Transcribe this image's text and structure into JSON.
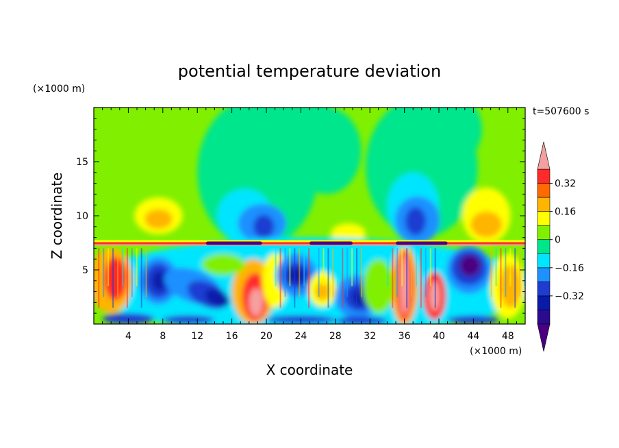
{
  "chart_data": {
    "type": "heatmap",
    "title": "potential temperature deviation",
    "time_label": "t=507600 s",
    "xlabel": "X coordinate",
    "ylabel": "Z coordinate",
    "x_unit": "(×1000 m)",
    "y_unit": "(×1000 m)",
    "xlim": [
      0,
      50
    ],
    "ylim": [
      0,
      20
    ],
    "x_ticks": [
      4,
      8,
      12,
      16,
      20,
      24,
      28,
      32,
      36,
      40,
      44,
      48
    ],
    "y_ticks": [
      5,
      10,
      15
    ],
    "colorbar": {
      "levels": [
        -0.48,
        -0.4,
        -0.32,
        -0.24,
        -0.16,
        -0.08,
        0,
        0.08,
        0.16,
        0.24,
        0.32,
        0.4
      ],
      "labeled_levels": [
        "0.32",
        "0.16",
        "0",
        "−0.16",
        "−0.32"
      ],
      "labeled_values": [
        0.32,
        0.16,
        0,
        -0.16,
        -0.32
      ],
      "colors": [
        "#4b0082",
        "#2a0a8f",
        "#0a1aa8",
        "#1e3cd2",
        "#1e90ff",
        "#00e5ff",
        "#00e68c",
        "#80f000",
        "#ffff00",
        "#ffb400",
        "#ff6a00",
        "#ff2a2a",
        "#f5a0a0"
      ]
    },
    "regions": {
      "tropopause_height": 7.5,
      "upper_features": [
        {
          "x": 7.5,
          "z": 10,
          "sign": "warm"
        },
        {
          "x": 19,
          "z": 10,
          "sign": "cool"
        },
        {
          "x": 29,
          "z": 8.5,
          "sign": "warm"
        },
        {
          "x": 38,
          "z": 10.5,
          "sign": "cool"
        },
        {
          "x": 45,
          "z": 10,
          "sign": "warm"
        }
      ],
      "lower_features": [
        {
          "x": 2,
          "z": 4,
          "sign": "warm"
        },
        {
          "x": 7.5,
          "z": 4,
          "sign": "cool"
        },
        {
          "x": 12,
          "z": 3,
          "sign": "cool"
        },
        {
          "x": 18.5,
          "z": 3,
          "sign": "warm"
        },
        {
          "x": 23.5,
          "z": 4.5,
          "sign": "cool"
        },
        {
          "x": 30,
          "z": 2.5,
          "sign": "cool"
        },
        {
          "x": 36,
          "z": 3.5,
          "sign": "warm"
        },
        {
          "x": 39,
          "z": 2.5,
          "sign": "warm"
        },
        {
          "x": 43.5,
          "z": 5,
          "sign": "cool"
        },
        {
          "x": 48,
          "z": 3.5,
          "sign": "warm"
        }
      ]
    }
  }
}
